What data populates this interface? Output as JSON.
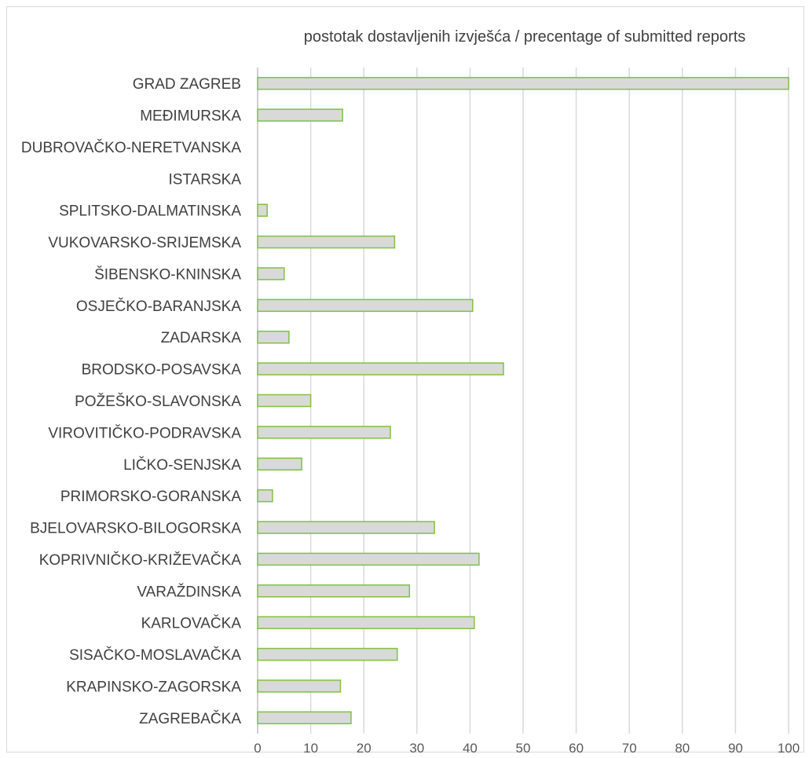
{
  "chart_data": {
    "type": "bar",
    "orientation": "horizontal",
    "title": "postotak dostavljenih izvješća / precentage of submitted reports",
    "xlabel": "",
    "ylabel": "",
    "xlim": [
      0,
      100
    ],
    "ticks": [
      0,
      10,
      20,
      30,
      40,
      50,
      60,
      70,
      80,
      90,
      100
    ],
    "grid": true,
    "legend": "none",
    "categories": [
      "GRAD ZAGREB",
      "MEĐIMURSKA",
      "DUBROVAČKO-NERETVANSKA",
      "ISTARSKA",
      "SPLITSKO-DALMATINSKA",
      "VUKOVARSKO-SRIJEMSKA",
      "ŠIBENSKO-KNINSKA",
      "OSJEČKO-BARANJSKA",
      "ZADARSKA",
      "BRODSKO-POSAVSKA",
      "POŽEŠKO-SLAVONSKA",
      "VIROVITIČKO-PODRAVSKA",
      "LIČKO-SENJSKA",
      "PRIMORSKO-GORANSKA",
      "BJELOVARSKO-BILOGORSKA",
      "KOPRIVNIČKO-KRIŽEVAČKA",
      "VARAŽDINSKA",
      "KARLOVAČKA",
      "SISAČKO-MOSLAVAČKA",
      "KRAPINSKO-ZAGORSKA",
      "ZAGREBAČKA"
    ],
    "values": [
      100,
      16,
      0,
      0,
      1.8,
      25.8,
      5,
      40.5,
      5.9,
      46.3,
      10,
      25,
      8.3,
      2.8,
      33.3,
      41.7,
      28.6,
      40.8,
      26.3,
      15.6,
      17.6
    ],
    "colors": {
      "bar_fill": "#d9d9d9",
      "bar_edge": "#7fc241",
      "grid": "#d9d9d9",
      "text": "#404040"
    }
  }
}
